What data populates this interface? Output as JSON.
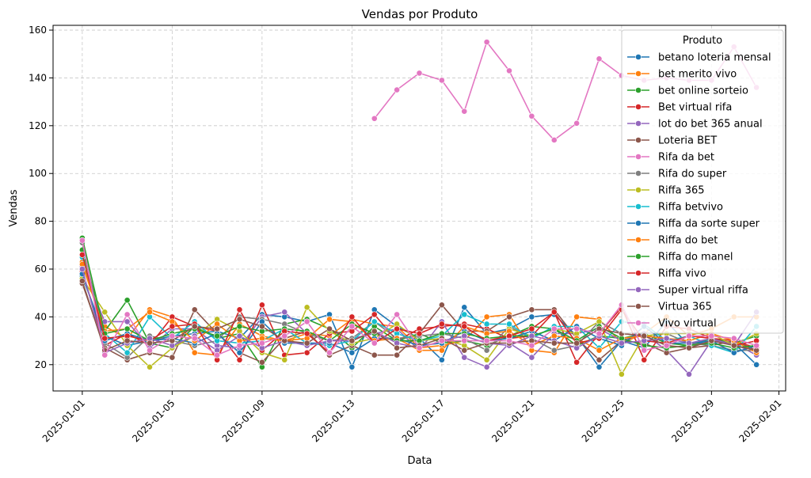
{
  "chart_data": {
    "type": "line",
    "title": "Vendas por Produto",
    "xlabel": "Data",
    "ylabel": "Vendas",
    "xlim": [
      -1.3,
      31.3
    ],
    "ylim": [
      9.0,
      162.0
    ],
    "x_ticks": [
      {
        "day": 0,
        "label": "2025-01-01"
      },
      {
        "day": 4,
        "label": "2025-01-05"
      },
      {
        "day": 8,
        "label": "2025-01-09"
      },
      {
        "day": 12,
        "label": "2025-01-13"
      },
      {
        "day": 16,
        "label": "2025-01-17"
      },
      {
        "day": 20,
        "label": "2025-01-21"
      },
      {
        "day": 24,
        "label": "2025-01-25"
      },
      {
        "day": 28,
        "label": "2025-01-29"
      },
      {
        "day": 31,
        "label": "2025-02-01"
      }
    ],
    "y_ticks": [
      20,
      40,
      60,
      80,
      100,
      120,
      140,
      160
    ],
    "grid": true,
    "legend": {
      "title": "Produto",
      "placement": "top-right"
    },
    "series": [
      {
        "name": "betano loteria mensal",
        "color": "#1f77b4",
        "x": [
          0,
          1,
          2,
          3,
          4,
          5,
          6,
          7,
          8,
          9,
          10,
          11,
          12,
          13,
          14,
          15,
          16,
          17,
          18,
          19,
          20,
          21,
          22,
          23,
          24,
          25,
          26,
          27,
          28,
          29,
          30
        ],
        "values": [
          57,
          32,
          28,
          30,
          32,
          33,
          34,
          31,
          41,
          40,
          38,
          41,
          19,
          43,
          36,
          31,
          22,
          44,
          33,
          35,
          40,
          41,
          32,
          19,
          30,
          27,
          38,
          28,
          30,
          29,
          20
        ]
      },
      {
        "name": "bet merito vivo",
        "color": "#ff7f0e",
        "x": [
          0,
          1,
          2,
          3,
          4,
          5,
          6,
          7,
          8,
          9,
          10,
          11,
          12,
          13,
          14,
          15,
          16,
          17,
          18,
          19,
          20,
          21,
          22,
          23,
          24,
          25,
          26,
          27,
          28,
          29,
          30
        ],
        "values": [
          63,
          36,
          31,
          43,
          40,
          25,
          24,
          37,
          32,
          30,
          33,
          32,
          39,
          37,
          36,
          27,
          28,
          30,
          40,
          41,
          26,
          25,
          40,
          39,
          29,
          33,
          40,
          32,
          35,
          40,
          40
        ]
      },
      {
        "name": "bet online sorteio",
        "color": "#2ca02c",
        "x": [
          0,
          1,
          2,
          3,
          4,
          5,
          6,
          7,
          8,
          9,
          10,
          11,
          12,
          13,
          14,
          15,
          16,
          17,
          18,
          19,
          20,
          21,
          22,
          23,
          24,
          25,
          26,
          27,
          28,
          29,
          30
        ],
        "values": [
          68,
          34,
          47,
          29,
          27,
          36,
          31,
          33,
          19,
          37,
          39,
          35,
          27,
          36,
          30,
          33,
          29,
          30,
          28,
          32,
          36,
          35,
          28,
          32,
          31,
          33,
          29,
          28,
          31,
          29,
          32
        ]
      },
      {
        "name": "Bet virtual rifa",
        "color": "#d62728",
        "x": [
          0,
          1,
          2,
          3,
          4,
          5,
          6,
          7,
          8,
          9,
          10,
          11,
          12,
          13,
          14,
          15,
          16,
          17,
          18,
          19,
          20,
          21,
          22,
          23,
          24,
          25,
          26,
          27,
          28,
          29,
          30
        ],
        "values": [
          59,
          28,
          33,
          28,
          40,
          36,
          34,
          22,
          45,
          24,
          25,
          33,
          34,
          41,
          30,
          35,
          36,
          37,
          35,
          31,
          32,
          42,
          21,
          33,
          44,
          22,
          36,
          35,
          31,
          30,
          27
        ]
      },
      {
        "name": "lot do bet 365 anual",
        "color": "#9467bd",
        "x": [
          0,
          1,
          2,
          3,
          4,
          5,
          6,
          7,
          8,
          9,
          10,
          11,
          12,
          13,
          14,
          15,
          16,
          17,
          18,
          19,
          20,
          21,
          22,
          23,
          24,
          25,
          26,
          27,
          28,
          29,
          30
        ],
        "values": [
          61,
          38,
          38,
          27,
          35,
          35,
          28,
          27,
          40,
          42,
          33,
          30,
          31,
          33,
          35,
          26,
          38,
          23,
          19,
          29,
          23,
          33,
          33,
          35,
          30,
          33,
          26,
          16,
          30,
          29,
          24
        ]
      },
      {
        "name": "Loteria BET",
        "color": "#8c564b",
        "x": [
          0,
          1,
          2,
          3,
          4,
          5,
          6,
          7,
          8,
          9,
          10,
          11,
          12,
          13,
          14,
          15,
          16,
          17,
          18,
          19,
          20,
          21,
          22,
          23,
          24,
          25,
          26,
          27,
          28,
          29,
          30
        ],
        "values": [
          54,
          27,
          22,
          25,
          23,
          43,
          33,
          25,
          21,
          31,
          34,
          24,
          28,
          24,
          24,
          33,
          45,
          34,
          34,
          40,
          43,
          43,
          31,
          22,
          30,
          29,
          25,
          27,
          28,
          30,
          26
        ]
      },
      {
        "name": "Rifa da bet",
        "color": "#e377c2",
        "x": [
          13,
          14,
          15,
          16,
          17,
          18,
          19,
          20,
          21,
          22,
          23,
          24,
          25,
          26,
          27,
          28,
          29,
          30
        ],
        "values": [
          123,
          135,
          142,
          139,
          126,
          155,
          143,
          124,
          114,
          121,
          148,
          141,
          139,
          140,
          139,
          139,
          153,
          136
        ]
      },
      {
        "name": "Rifa do super",
        "color": "#7f7f7f",
        "x": [
          0,
          1,
          2,
          3,
          4,
          5,
          6,
          7,
          8,
          9,
          10,
          11,
          12,
          13,
          14,
          15,
          16,
          17,
          18,
          19,
          20,
          21,
          22,
          23,
          24,
          25,
          26,
          27,
          28,
          29,
          30
        ],
        "values": [
          71,
          29,
          23,
          32,
          30,
          28,
          30,
          40,
          39,
          37,
          33,
          30,
          31,
          38,
          31,
          32,
          33,
          31,
          26,
          36,
          31,
          26,
          28,
          38,
          33,
          32,
          33,
          29,
          28,
          26,
          26
        ]
      },
      {
        "name": "Riffa 365",
        "color": "#bcbd22",
        "x": [
          0,
          1,
          2,
          3,
          4,
          5,
          6,
          7,
          8,
          9,
          10,
          11,
          12,
          13,
          14,
          15,
          16,
          17,
          18,
          19,
          20,
          21,
          22,
          23,
          24,
          25,
          26,
          27,
          28,
          29,
          30
        ],
        "values": [
          56,
          42,
          28,
          19,
          27,
          32,
          39,
          34,
          25,
          22,
          44,
          34,
          29,
          31,
          37,
          30,
          31,
          28,
          22,
          35,
          32,
          35,
          33,
          38,
          16,
          32,
          33,
          33,
          33,
          28,
          33
        ]
      },
      {
        "name": "Riffa betvivo",
        "color": "#17becf",
        "x": [
          0,
          1,
          2,
          3,
          4,
          5,
          6,
          7,
          8,
          9,
          10,
          11,
          12,
          13,
          14,
          15,
          16,
          17,
          18,
          19,
          20,
          21,
          22,
          23,
          24,
          25,
          26,
          27,
          28,
          29,
          30
        ],
        "values": [
          65,
          33,
          25,
          40,
          31,
          38,
          30,
          29,
          30,
          35,
          29,
          28,
          30,
          38,
          33,
          30,
          32,
          41,
          37,
          37,
          31,
          36,
          36,
          27,
          38,
          37,
          30,
          32,
          28,
          25,
          36
        ]
      },
      {
        "name": "Riffa da sorte super",
        "color": "#1f77b4",
        "x": [
          0,
          1,
          2,
          3,
          4,
          5,
          6,
          7,
          8,
          9,
          10,
          11,
          12,
          13,
          14,
          15,
          16,
          17,
          18,
          19,
          20,
          21,
          22,
          23,
          24,
          25,
          26,
          27,
          28,
          29,
          30
        ],
        "values": [
          58,
          30,
          33,
          30,
          31,
          29,
          33,
          25,
          38,
          29,
          29,
          29,
          25,
          31,
          31,
          28,
          29,
          34,
          30,
          31,
          34,
          30,
          36,
          31,
          28,
          36,
          29,
          29,
          30,
          25,
          28
        ]
      },
      {
        "name": "Riffa do bet",
        "color": "#ff7f0e",
        "x": [
          0,
          1,
          2,
          3,
          4,
          5,
          6,
          7,
          8,
          9,
          10,
          11,
          12,
          13,
          14,
          15,
          16,
          17,
          18,
          19,
          20,
          21,
          22,
          23,
          24,
          25,
          26,
          27,
          28,
          29,
          30
        ],
        "values": [
          62,
          34,
          35,
          42,
          38,
          30,
          37,
          30,
          31,
          30,
          31,
          39,
          38,
          30,
          31,
          26,
          26,
          36,
          33,
          34,
          28,
          32,
          31,
          26,
          31,
          32,
          31,
          30,
          33,
          30,
          25
        ]
      },
      {
        "name": "Riffa do manel",
        "color": "#2ca02c",
        "x": [
          0,
          1,
          2,
          3,
          4,
          5,
          6,
          7,
          8,
          9,
          10,
          11,
          12,
          13,
          14,
          15,
          16,
          17,
          18,
          19,
          20,
          21,
          22,
          23,
          24,
          25,
          26,
          27,
          28,
          29,
          30
        ],
        "values": [
          73,
          33,
          35,
          30,
          33,
          35,
          32,
          36,
          34,
          35,
          34,
          30,
          37,
          33,
          30,
          30,
          33,
          33,
          31,
          32,
          32,
          35,
          30,
          36,
          31,
          28,
          27,
          28,
          29,
          27,
          28
        ]
      },
      {
        "name": "Riffa vivo",
        "color": "#d62728",
        "x": [
          0,
          1,
          2,
          3,
          4,
          5,
          6,
          7,
          8,
          9,
          10,
          11,
          12,
          13,
          14,
          15,
          16,
          17,
          18,
          19,
          20,
          21,
          22,
          23,
          24,
          25,
          26,
          27,
          28,
          29,
          30
        ],
        "values": [
          66,
          31,
          32,
          30,
          36,
          37,
          22,
          43,
          26,
          34,
          33,
          25,
          40,
          29,
          35,
          33,
          37,
          36,
          30,
          32,
          35,
          42,
          29,
          31,
          43,
          30,
          29,
          32,
          31,
          28,
          30
        ]
      },
      {
        "name": "Super virtual riffa",
        "color": "#9467bd",
        "x": [
          0,
          1,
          2,
          3,
          4,
          5,
          6,
          7,
          8,
          9,
          10,
          11,
          12,
          13,
          14,
          15,
          16,
          17,
          18,
          19,
          20,
          21,
          22,
          23,
          24,
          25,
          26,
          27,
          28,
          29,
          30
        ],
        "values": [
          60,
          25,
          29,
          31,
          28,
          32,
          26,
          32,
          27,
          30,
          28,
          30,
          30,
          34,
          29,
          27,
          30,
          32,
          29,
          28,
          32,
          30,
          27,
          32,
          29,
          30,
          31,
          29,
          31,
          28,
          42
        ]
      },
      {
        "name": "Virtua 365",
        "color": "#8c564b",
        "x": [
          0,
          1,
          2,
          3,
          4,
          5,
          6,
          7,
          8,
          9,
          10,
          11,
          12,
          13,
          14,
          15,
          16,
          17,
          18,
          19,
          20,
          21,
          22,
          23,
          24,
          25,
          26,
          27,
          28,
          29,
          30
        ],
        "values": [
          55,
          26,
          30,
          29,
          30,
          36,
          35,
          39,
          36,
          30,
          29,
          35,
          30,
          34,
          27,
          28,
          31,
          26,
          29,
          29,
          30,
          29,
          29,
          35,
          33,
          32,
          28,
          27,
          30,
          28,
          26
        ]
      },
      {
        "name": "Vivo virtual",
        "color": "#e377c2",
        "x": [
          0,
          1,
          2,
          3,
          4,
          5,
          6,
          7,
          8,
          9,
          10,
          11,
          12,
          13,
          14,
          15,
          16,
          17,
          18,
          19,
          20,
          21,
          22,
          23,
          24,
          25,
          26,
          27,
          28,
          29,
          30
        ],
        "values": [
          72,
          24,
          41,
          26,
          32,
          31,
          24,
          28,
          29,
          32,
          38,
          25,
          36,
          29,
          41,
          27,
          30,
          30,
          30,
          30,
          28,
          35,
          35,
          33,
          45,
          26,
          28,
          32,
          32,
          31,
          28
        ]
      }
    ]
  }
}
